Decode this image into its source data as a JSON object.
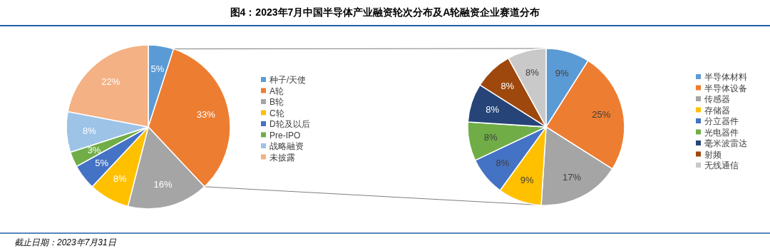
{
  "chart_data": [
    {
      "type": "pie",
      "title": "图4：2023年7月中国半导体产业融资轮次分布及A轮融资企业赛道分布",
      "categories": [
        "种子/天使",
        "A轮",
        "B轮",
        "C轮",
        "D轮及以后",
        "Pre-IPO",
        "战略融资",
        "未披露"
      ],
      "values": [
        5,
        33,
        16,
        8,
        5,
        3,
        8,
        22
      ],
      "colors": [
        "#5b9bd5",
        "#ed7d31",
        "#a5a5a5",
        "#ffc000",
        "#4472c4",
        "#70ad47",
        "#9dc3e6",
        "#f4b183"
      ],
      "value_labels": [
        "5%",
        "33%",
        "16%",
        "8%",
        "5%",
        "3%",
        "8%",
        "22%"
      ],
      "legend": "right",
      "annotations": [
        "截止日期：2023年7月31日"
      ]
    },
    {
      "type": "pie",
      "categories": [
        "半导体材料",
        "半导体设备",
        "传感器",
        "存储器",
        "分立器件",
        "光电器件",
        "毫米波雷达",
        "射频",
        "无线通信"
      ],
      "values": [
        9,
        25,
        17,
        9,
        8,
        8,
        8,
        8,
        8
      ],
      "colors": [
        "#5b9bd5",
        "#ed7d31",
        "#a5a5a5",
        "#ffc000",
        "#4472c4",
        "#70ad47",
        "#264478",
        "#9e480e",
        "#c9c9c9"
      ],
      "value_labels": [
        "9%",
        "25%",
        "17%",
        "9%",
        "8%",
        "8%",
        "8%",
        "8%",
        "8%"
      ],
      "legend": "right"
    }
  ]
}
